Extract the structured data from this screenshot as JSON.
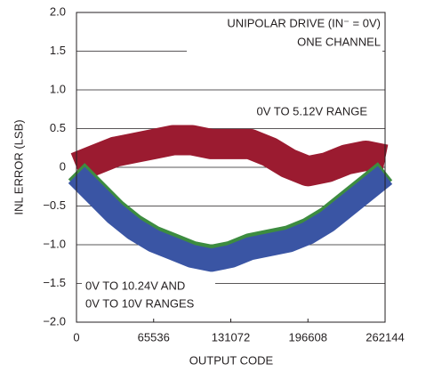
{
  "chart_data": {
    "type": "line",
    "xlabel": "OUTPUT CODE",
    "ylabel": "INL ERROR (LSB)",
    "annotations": [
      "UNIPOLAR DRIVE (IN⁻ = 0V)",
      "ONE CHANNEL",
      "0V TO 5.12V RANGE",
      "0V TO 10.24V AND",
      "0V TO 10V RANGES"
    ],
    "x": [
      0,
      16384,
      32768,
      49152,
      65536,
      81920,
      98304,
      114688,
      131072,
      147456,
      163840,
      180224,
      196608,
      212992,
      229376,
      245760,
      262144
    ],
    "series": [
      {
        "name": "0V TO 5.12V RANGE",
        "color": "#9b1b30",
        "values": [
          0.0,
          0.1,
          0.2,
          0.25,
          0.3,
          0.35,
          0.35,
          0.3,
          0.3,
          0.3,
          0.2,
          0.05,
          -0.05,
          0.0,
          0.1,
          0.15,
          0.1
        ]
      },
      {
        "name": "0V TO 10V RANGE",
        "color": "#3d8c40",
        "values": [
          -0.05,
          -0.3,
          -0.55,
          -0.75,
          -0.9,
          -1.0,
          -1.1,
          -1.15,
          -1.1,
          -1.0,
          -0.95,
          -0.9,
          -0.8,
          -0.65,
          -0.45,
          -0.25,
          -0.05
        ]
      },
      {
        "name": "0V TO 10.24V RANGE",
        "color": "#3a55a4",
        "values": [
          -0.1,
          -0.35,
          -0.6,
          -0.8,
          -0.95,
          -1.05,
          -1.15,
          -1.2,
          -1.15,
          -1.05,
          -1.0,
          -0.95,
          -0.85,
          -0.7,
          -0.5,
          -0.3,
          -0.1
        ]
      }
    ],
    "xlim": [
      0,
      262144
    ],
    "xticks": [
      0,
      65536,
      131072,
      196608,
      262144
    ],
    "ylim": [
      -2,
      2
    ],
    "yticks": [
      {
        "value": -2,
        "label": "−2.0"
      },
      {
        "value": -1.5,
        "label": "−1.5"
      },
      {
        "value": -1,
        "label": "−1.0"
      },
      {
        "value": -0.5,
        "label": "−0.5"
      },
      0,
      {
        "value": 0.5,
        "label": "0.5"
      },
      {
        "value": 1,
        "label": "1.0"
      },
      {
        "value": 1.5,
        "label": "1.5"
      },
      {
        "value": 2,
        "label": "2.0"
      }
    ],
    "grid": true
  }
}
